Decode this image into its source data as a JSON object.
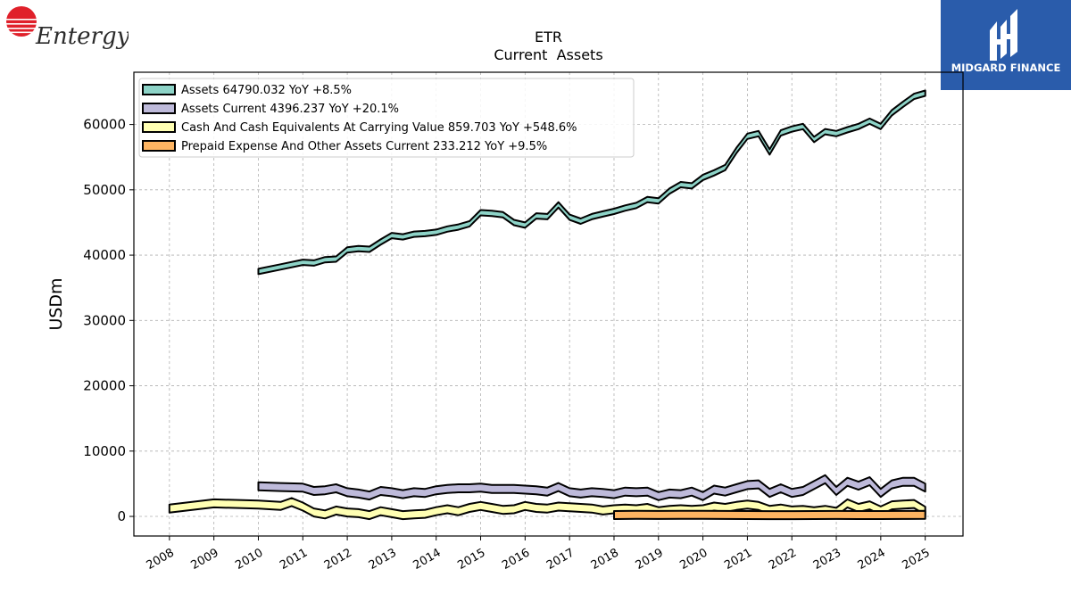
{
  "brand": {
    "left_logo_text": "Entergy",
    "right_logo_text": "MIDGARD FINANCE",
    "right_logo_bg": "#2a5cab",
    "left_logo_color": "#e0202a"
  },
  "chart_data": {
    "type": "area",
    "title": "ETR",
    "subtitle": "Current  Assets",
    "xlabel": "",
    "ylabel": "USDm",
    "ylim": [
      -3000,
      68000
    ],
    "xlim": [
      2007.2,
      2025.85
    ],
    "grid": true,
    "legend_position": "top-left",
    "yticks": [
      0,
      10000,
      20000,
      30000,
      40000,
      50000,
      60000
    ],
    "ytick_labels": [
      "0",
      "10000",
      "20000",
      "30000",
      "40000",
      "50000",
      "60000"
    ],
    "xticks": [
      2008,
      2009,
      2010,
      2011,
      2012,
      2013,
      2014,
      2015,
      2016,
      2017,
      2018,
      2019,
      2020,
      2021,
      2022,
      2023,
      2024,
      2025
    ],
    "xtick_labels": [
      "2008",
      "2009",
      "2010",
      "2011",
      "2012",
      "2013",
      "2014",
      "2015",
      "2016",
      "2017",
      "2018",
      "2019",
      "2020",
      "2021",
      "2022",
      "2023",
      "2024",
      "2025"
    ],
    "series": [
      {
        "name": "Assets  64790.032 YoY +8.5%",
        "color": "#8dd3c7",
        "x": [
          2010.0,
          2010.5,
          2011.0,
          2011.25,
          2011.5,
          2011.75,
          2012.0,
          2012.25,
          2012.5,
          2012.75,
          2013.0,
          2013.25,
          2013.5,
          2013.75,
          2014.0,
          2014.25,
          2014.5,
          2014.75,
          2015.0,
          2015.25,
          2015.5,
          2015.75,
          2016.0,
          2016.25,
          2016.5,
          2016.75,
          2017.0,
          2017.25,
          2017.5,
          2017.75,
          2018.0,
          2018.25,
          2018.5,
          2018.75,
          2019.0,
          2019.25,
          2019.5,
          2019.75,
          2020.0,
          2020.25,
          2020.5,
          2020.75,
          2021.0,
          2021.25,
          2021.5,
          2021.75,
          2022.0,
          2022.25,
          2022.5,
          2022.75,
          2023.0,
          2023.25,
          2023.5,
          2023.75,
          2024.0,
          2024.25,
          2024.5,
          2024.75,
          2025.0
        ],
        "values": [
          37500,
          38200,
          38900,
          38800,
          39300,
          39400,
          40800,
          41000,
          40900,
          42000,
          43000,
          42800,
          43200,
          43300,
          43500,
          44000,
          44300,
          44800,
          46500,
          46400,
          46200,
          45000,
          44600,
          46000,
          45900,
          47700,
          45800,
          45200,
          45900,
          46300,
          46700,
          47200,
          47600,
          48500,
          48300,
          49800,
          50800,
          50600,
          51900,
          52600,
          53400,
          56000,
          58200,
          58600,
          55800,
          58700,
          59300,
          59700,
          57700,
          58900,
          58600,
          59200,
          59700,
          60500,
          59700,
          61800,
          63100,
          64300,
          64790
        ]
      },
      {
        "name": "Assets Current  4396.237 YoY +20.1%",
        "color": "#bebada",
        "x": [
          2010.0,
          2010.5,
          2011.0,
          2011.25,
          2011.5,
          2011.75,
          2012.0,
          2012.25,
          2012.5,
          2012.75,
          2013.0,
          2013.25,
          2013.5,
          2013.75,
          2014.0,
          2014.25,
          2014.5,
          2014.75,
          2015.0,
          2015.25,
          2015.5,
          2015.75,
          2016.0,
          2016.25,
          2016.5,
          2016.75,
          2017.0,
          2017.25,
          2017.5,
          2017.75,
          2018.0,
          2018.25,
          2018.5,
          2018.75,
          2019.0,
          2019.25,
          2019.5,
          2019.75,
          2020.0,
          2020.25,
          2020.5,
          2020.75,
          2021.0,
          2021.25,
          2021.5,
          2021.75,
          2022.0,
          2022.25,
          2022.5,
          2022.75,
          2023.0,
          2023.25,
          2023.5,
          2023.75,
          2024.0,
          2024.25,
          2024.5,
          2024.75,
          2025.0
        ],
        "values": [
          4600,
          4500,
          4400,
          3900,
          4000,
          4300,
          3700,
          3500,
          3200,
          3900,
          3700,
          3400,
          3700,
          3600,
          4000,
          4200,
          4300,
          4300,
          4400,
          4200,
          4200,
          4200,
          4100,
          4000,
          3800,
          4500,
          3700,
          3500,
          3700,
          3600,
          3400,
          3800,
          3700,
          3800,
          3100,
          3500,
          3400,
          3800,
          3100,
          4100,
          3800,
          4300,
          4800,
          4900,
          3600,
          4300,
          3600,
          3900,
          4800,
          5700,
          3900,
          5300,
          4700,
          5400,
          3600,
          4900,
          5300,
          5300,
          4396
        ]
      },
      {
        "name": "Cash And Cash Equivalents At Carrying Value  859.703 YoY +548.6%",
        "color": "#ffffb3",
        "x": [
          2008.0,
          2009.0,
          2010.0,
          2010.5,
          2010.75,
          2011.0,
          2011.25,
          2011.5,
          2011.75,
          2012.0,
          2012.25,
          2012.5,
          2012.75,
          2013.0,
          2013.25,
          2013.5,
          2013.75,
          2014.0,
          2014.25,
          2014.5,
          2014.75,
          2015.0,
          2015.25,
          2015.5,
          2015.75,
          2016.0,
          2016.25,
          2016.5,
          2016.75,
          2017.0,
          2017.25,
          2017.5,
          2017.75,
          2018.0,
          2018.25,
          2018.5,
          2018.75,
          2019.0,
          2019.25,
          2019.5,
          2019.75,
          2020.0,
          2020.25,
          2020.5,
          2020.75,
          2021.0,
          2021.25,
          2021.5,
          2021.75,
          2022.0,
          2022.25,
          2022.5,
          2022.75,
          2023.0,
          2023.25,
          2023.5,
          2023.75,
          2024.0,
          2024.25,
          2024.5,
          2024.75,
          2025.0
        ],
        "values": [
          1200,
          2000,
          1800,
          1600,
          2200,
          1500,
          600,
          300,
          900,
          600,
          500,
          200,
          800,
          500,
          200,
          300,
          400,
          800,
          1100,
          800,
          1300,
          1600,
          1300,
          1000,
          1100,
          1600,
          1300,
          1200,
          1500,
          1400,
          1300,
          1200,
          900,
          1100,
          1200,
          1100,
          1300,
          800,
          1000,
          1100,
          1000,
          1100,
          1500,
          1300,
          1600,
          1800,
          1600,
          1000,
          1200,
          900,
          1000,
          800,
          1000,
          700,
          2000,
          1300,
          1700,
          900,
          1700,
          1800,
          1900,
          860
        ]
      },
      {
        "name": "Prepaid Expense And Other Assets Current  233.212 YoY +9.5%",
        "color": "#fdb462",
        "x": [
          2018.0,
          2018.5,
          2019.0,
          2019.5,
          2020.0,
          2020.5,
          2021.0,
          2021.5,
          2022.0,
          2022.5,
          2023.0,
          2023.5,
          2024.0,
          2024.5,
          2025.0
        ],
        "values": [
          210,
          230,
          220,
          240,
          230,
          220,
          210,
          200,
          200,
          210,
          220,
          210,
          213,
          220,
          233
        ]
      }
    ]
  }
}
